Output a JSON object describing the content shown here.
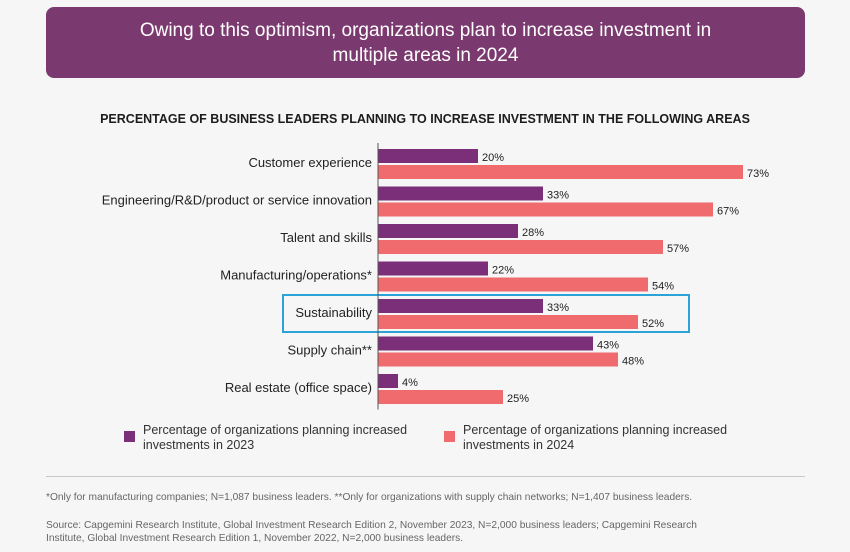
{
  "banner": {
    "line1": "Owing to this optimism, organizations plan to increase investment in",
    "line2": "multiple areas in 2024"
  },
  "subtitle": "PERCENTAGE OF BUSINESS LEADERS PLANNING TO INCREASE INVESTMENT IN THE FOLLOWING AREAS",
  "colors": {
    "banner": "#7b3a6f",
    "series_2023": "#7b2f78",
    "series_2024": "#ef6b6e",
    "highlight_box": "#2ba3d6"
  },
  "chart_data": {
    "type": "bar",
    "orientation": "horizontal",
    "categories": [
      "Customer experience",
      "Engineering/R&D/product or service innovation",
      "Talent and skills",
      "Manufacturing/operations*",
      "Sustainability",
      "Supply chain**",
      "Real estate (office space)"
    ],
    "series": [
      {
        "name": "Percentage of organizations planning increased investments in 2023",
        "values": [
          20,
          33,
          28,
          22,
          33,
          43,
          4
        ]
      },
      {
        "name": "Percentage of organizations planning increased investments in 2024",
        "values": [
          73,
          67,
          57,
          54,
          52,
          48,
          25
        ]
      }
    ],
    "value_suffix": "%",
    "highlighted_category": "Sustainability",
    "xlim": [
      0,
      100
    ],
    "legend_position": "bottom"
  },
  "legend": {
    "item_2023_line1": "Percentage of organizations planning increased",
    "item_2023_line2": "investments in 2023",
    "item_2024_line1": "Percentage of organizations planning increased",
    "item_2024_line2": "investments in 2024"
  },
  "footnote": "*Only for manufacturing companies; N=1,087 business leaders. **Only for organizations with supply chain networks; N=1,407 business leaders.",
  "source_line1": "Source: Capgemini Research Institute, Global Investment Research Edition 2, November 2023, N=2,000 business leaders; Capgemini Research",
  "source_line2": "Institute, Global Investment Research Edition 1, November 2022, N=2,000 business leaders."
}
